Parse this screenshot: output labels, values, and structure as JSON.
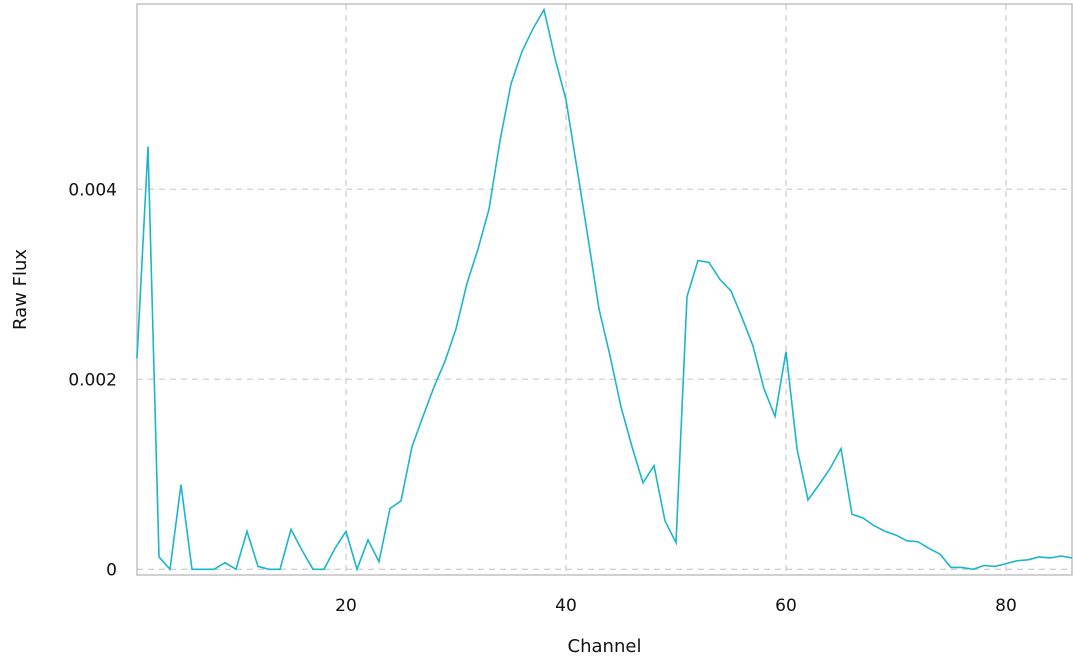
{
  "chart_data": {
    "type": "line",
    "xlabel": "Channel",
    "ylabel": "Raw Flux",
    "xlim": [
      1,
      86
    ],
    "ylim": [
      -6e-05,
      0.00595
    ],
    "x_ticks": [
      20,
      40,
      60,
      80
    ],
    "y_ticks": [
      0,
      0.002,
      0.004
    ],
    "x_tick_labels": [
      "20",
      "40",
      "60",
      "80"
    ],
    "y_tick_labels": [
      "0",
      "0.002",
      "0.004"
    ],
    "grid": true,
    "legend": "none",
    "colors": {
      "line": "#1bb6cc",
      "grid": "#d0d0d0",
      "frame": "#bdbdbd",
      "text": "#111111"
    },
    "series": [
      {
        "x": [
          1,
          2,
          3,
          4,
          5,
          6,
          7,
          8,
          9,
          10,
          11,
          12,
          13,
          14,
          15,
          16,
          17,
          18,
          19,
          20,
          21,
          22,
          23,
          24,
          25,
          26,
          27,
          28,
          29,
          30,
          31,
          32,
          33,
          34,
          35,
          36,
          37,
          38,
          39,
          40,
          41,
          42,
          43,
          44,
          45,
          46,
          47,
          48,
          49,
          50,
          51,
          52,
          53,
          54,
          55,
          56,
          57,
          58,
          59,
          60,
          61,
          62,
          63,
          64,
          65,
          66,
          67,
          68,
          69,
          70,
          71,
          72,
          73,
          74,
          75,
          76,
          77,
          78,
          79,
          80,
          81,
          82,
          83,
          84,
          85,
          86
        ],
        "values": [
          0.00222,
          0.00445,
          0.00013,
          0.0,
          0.00089,
          0.0,
          0.0,
          0.0,
          7e-05,
          0.0,
          0.0004,
          3e-05,
          0.0,
          0.0,
          0.00042,
          0.0002,
          0.0,
          0.0,
          0.00022,
          0.0004,
          0.0,
          0.00031,
          8e-05,
          0.00064,
          0.00072,
          0.00129,
          0.00161,
          0.00192,
          0.00219,
          0.00253,
          0.00301,
          0.00337,
          0.00379,
          0.00451,
          0.00511,
          0.00545,
          0.00569,
          0.00589,
          0.00538,
          0.00494,
          0.00422,
          0.00349,
          0.00274,
          0.00225,
          0.00171,
          0.00129,
          0.00091,
          0.00109,
          0.00051,
          0.00028,
          0.00287,
          0.00325,
          0.00323,
          0.00305,
          0.00293,
          0.00265,
          0.00235,
          0.0019,
          0.00161,
          0.00229,
          0.00127,
          0.00073,
          0.00089,
          0.00106,
          0.00127,
          0.00058,
          0.00054,
          0.00046,
          0.0004,
          0.00036,
          0.0003,
          0.00029,
          0.00022,
          0.00016,
          2e-05,
          2e-05,
          0.0,
          4e-05,
          3e-05,
          6e-05,
          9e-05,
          0.0001,
          0.00013,
          0.00012,
          0.00014,
          0.00012
        ]
      }
    ]
  }
}
